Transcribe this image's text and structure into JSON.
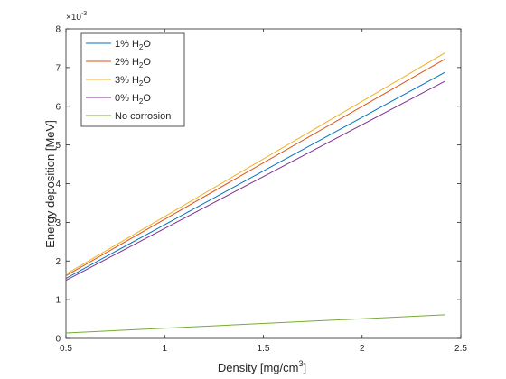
{
  "chart_data": {
    "type": "line",
    "title": "",
    "xlabel": "Density [mg/cm",
    "xlabel_sup": "3",
    "xlabel_suffix": "]",
    "ylabel": "Energy deposition [MeV]",
    "y_exponent_base": "×10",
    "y_exponent": "-3",
    "xlim": [
      0.5,
      2.5
    ],
    "ylim": [
      0,
      0.008
    ],
    "xticks": [
      0.5,
      1,
      1.5,
      2,
      2.5
    ],
    "xtick_labels": [
      "0.5",
      "1",
      "1.5",
      "2",
      "2.5"
    ],
    "yticks": [
      0,
      0.001,
      0.002,
      0.003,
      0.004,
      0.005,
      0.006,
      0.007,
      0.008
    ],
    "ytick_labels": [
      "0",
      "1",
      "2",
      "3",
      "4",
      "5",
      "6",
      "7",
      "8"
    ],
    "grid": false,
    "legend_position": "top-left",
    "series": [
      {
        "name": "1% H2O",
        "label_parts": [
          "1% H",
          "2",
          "O"
        ],
        "color": "#0072BD",
        "x": [
          0.5,
          2.42
        ],
        "y": [
          0.00155,
          0.00688
        ]
      },
      {
        "name": "2% H2O",
        "label_parts": [
          "2% H",
          "2",
          "O"
        ],
        "color": "#D95319",
        "x": [
          0.5,
          2.42
        ],
        "y": [
          0.00162,
          0.00722
        ]
      },
      {
        "name": "3% H2O",
        "label_parts": [
          "3% H",
          "2",
          "O"
        ],
        "color": "#EDB120",
        "x": [
          0.5,
          2.42
        ],
        "y": [
          0.00166,
          0.00738
        ]
      },
      {
        "name": "0% H2O",
        "label_parts": [
          "0% H",
          "2",
          "O"
        ],
        "color": "#7E2F8E",
        "x": [
          0.5,
          2.42
        ],
        "y": [
          0.0015,
          0.00665
        ]
      },
      {
        "name": "No corrosion",
        "label_parts": [
          "No corrosion",
          "",
          ""
        ],
        "color": "#77AC30",
        "x": [
          0.5,
          2.42
        ],
        "y": [
          0.00014,
          0.00061
        ]
      }
    ]
  }
}
